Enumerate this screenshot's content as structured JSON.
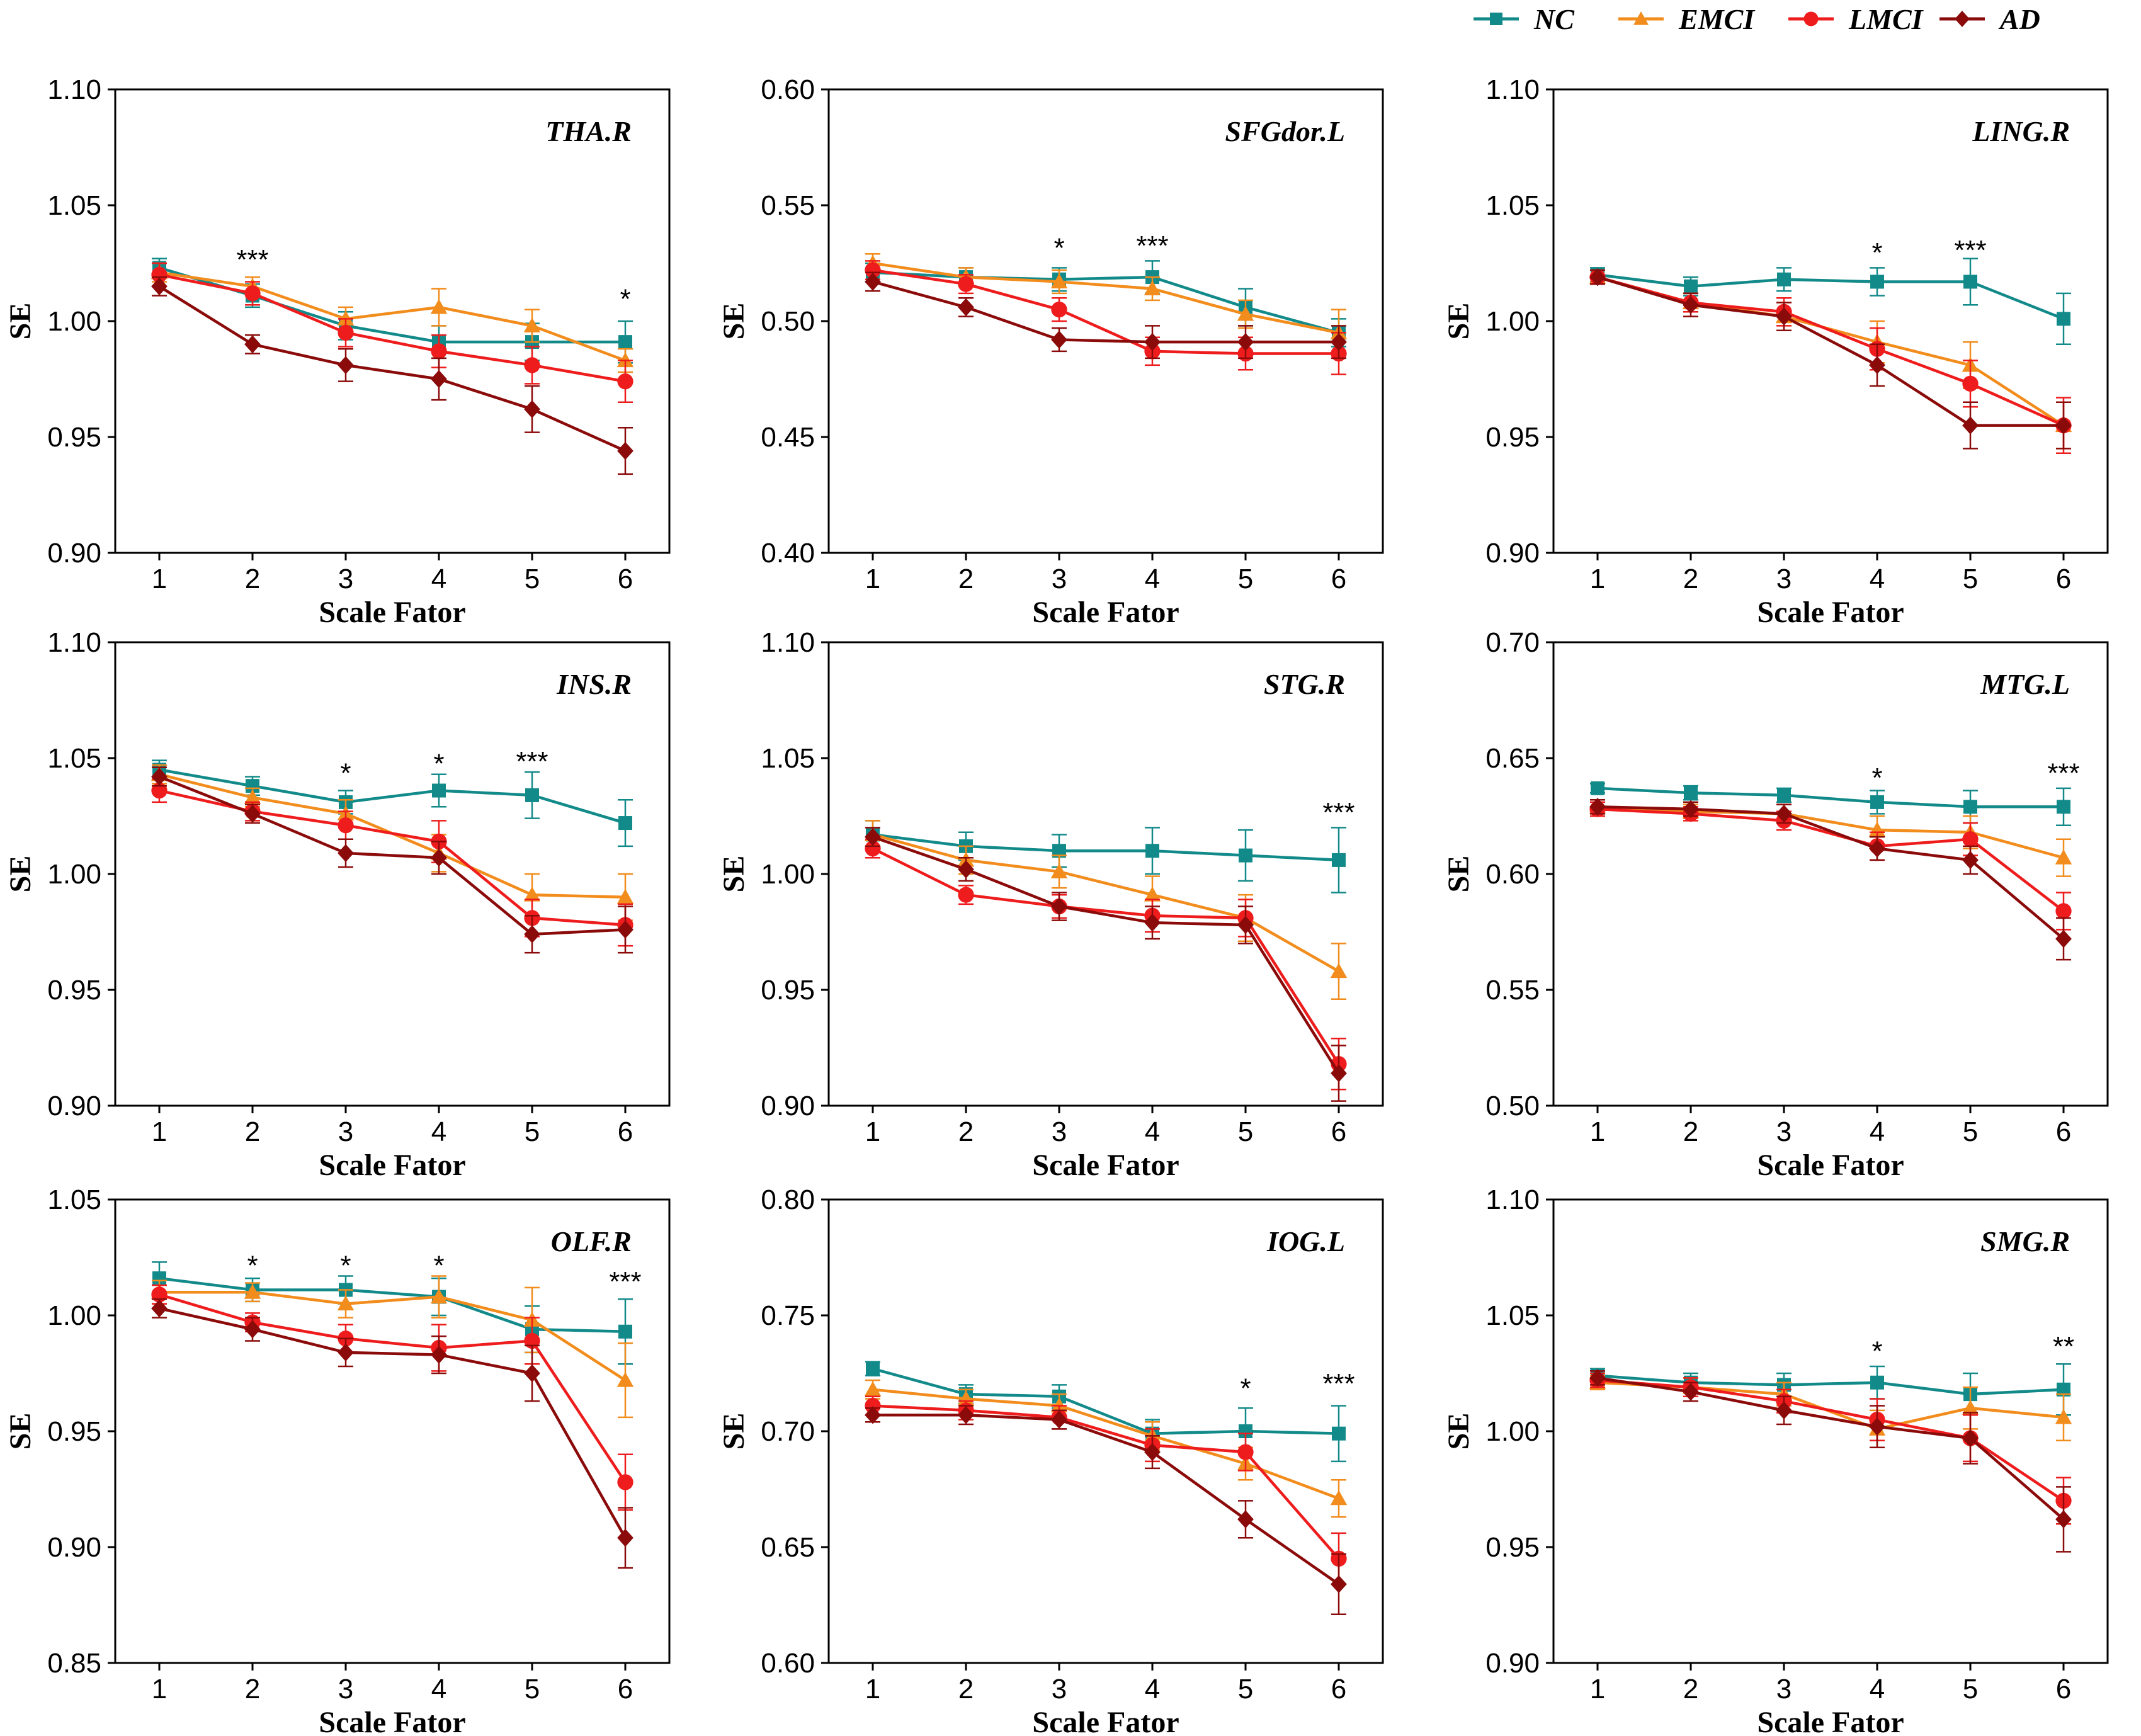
{
  "colors": {
    "NC": "#138a8a",
    "EMCI": "#f28c1c",
    "LMCI": "#ee1c1c",
    "AD": "#8b0a0a"
  },
  "legend": [
    {
      "name": "NC",
      "label": "NC",
      "marker": "square"
    },
    {
      "name": "EMCI",
      "label": "EMCI",
      "marker": "triangle"
    },
    {
      "name": "LMCI",
      "label": "LMCI",
      "marker": "circle"
    },
    {
      "name": "AD",
      "label": "AD",
      "marker": "diamond"
    }
  ],
  "chart_data": [
    {
      "type": "line",
      "title": "THA.R",
      "xlabel": "Scale Fator",
      "ylabel": "SE",
      "x": [
        1,
        2,
        3,
        4,
        5,
        6
      ],
      "ylim": [
        0.9,
        1.1
      ],
      "yticks": [
        "0.90",
        "0.95",
        "1.00",
        "1.05",
        "1.10"
      ],
      "significance": [
        {
          "x": 2,
          "label": "***",
          "y": 1.028
        },
        {
          "x": 6,
          "label": "*",
          "y": 1.011
        }
      ],
      "series": [
        {
          "name": "NC",
          "values": [
            1.023,
            1.011,
            0.998,
            0.991,
            0.991,
            0.991
          ],
          "err": [
            0.004,
            0.005,
            0.006,
            0.007,
            0.008,
            0.009
          ]
        },
        {
          "name": "EMCI",
          "values": [
            1.021,
            1.015,
            1.001,
            1.006,
            0.998,
            0.983
          ],
          "err": [
            0.004,
            0.004,
            0.005,
            0.008,
            0.007,
            0.005
          ]
        },
        {
          "name": "LMCI",
          "values": [
            1.02,
            1.012,
            0.995,
            0.987,
            0.981,
            0.974
          ],
          "err": [
            0.005,
            0.005,
            0.006,
            0.007,
            0.008,
            0.009
          ]
        },
        {
          "name": "AD",
          "values": [
            1.015,
            0.99,
            0.981,
            0.975,
            0.962,
            0.944
          ],
          "err": [
            0.004,
            0.004,
            0.007,
            0.009,
            0.01,
            0.01
          ]
        }
      ]
    },
    {
      "type": "line",
      "title": "SFGdor.L",
      "xlabel": "Scale Fator",
      "ylabel": "SE",
      "x": [
        1,
        2,
        3,
        4,
        5,
        6
      ],
      "ylim": [
        0.4,
        0.6
      ],
      "yticks": [
        "0.40",
        "0.45",
        "0.50",
        "0.55",
        "0.60"
      ],
      "significance": [
        {
          "x": 3,
          "label": "*",
          "y": 0.533
        },
        {
          "x": 4,
          "label": "***",
          "y": 0.534
        }
      ],
      "series": [
        {
          "name": "NC",
          "values": [
            0.521,
            0.519,
            0.518,
            0.519,
            0.506,
            0.495
          ],
          "err": [
            0.004,
            0.004,
            0.005,
            0.007,
            0.008,
            0.006
          ]
        },
        {
          "name": "EMCI",
          "values": [
            0.525,
            0.519,
            0.517,
            0.514,
            0.503,
            0.495
          ],
          "err": [
            0.004,
            0.004,
            0.005,
            0.005,
            0.006,
            0.01
          ]
        },
        {
          "name": "LMCI",
          "values": [
            0.522,
            0.516,
            0.505,
            0.487,
            0.486,
            0.486
          ],
          "err": [
            0.004,
            0.004,
            0.005,
            0.006,
            0.007,
            0.009
          ]
        },
        {
          "name": "AD",
          "values": [
            0.517,
            0.506,
            0.492,
            0.491,
            0.491,
            0.491
          ],
          "err": [
            0.004,
            0.004,
            0.005,
            0.007,
            0.007,
            0.007
          ]
        }
      ]
    },
    {
      "type": "line",
      "title": "LING.R",
      "xlabel": "Scale Fator",
      "ylabel": "SE",
      "x": [
        1,
        2,
        3,
        4,
        5,
        6
      ],
      "ylim": [
        0.9,
        1.1
      ],
      "yticks": [
        "0.90",
        "0.95",
        "1.00",
        "1.05",
        "1.10"
      ],
      "significance": [
        {
          "x": 4,
          "label": "*",
          "y": 1.031
        },
        {
          "x": 5,
          "label": "***",
          "y": 1.032
        }
      ],
      "series": [
        {
          "name": "NC",
          "values": [
            1.02,
            1.015,
            1.018,
            1.017,
            1.017,
            1.001
          ],
          "err": [
            0.003,
            0.004,
            0.005,
            0.006,
            0.01,
            0.011
          ]
        },
        {
          "name": "EMCI",
          "values": [
            1.019,
            1.008,
            1.002,
            0.991,
            0.981,
            0.955
          ],
          "err": [
            0.003,
            0.004,
            0.006,
            0.009,
            0.01,
            0.01
          ]
        },
        {
          "name": "LMCI",
          "values": [
            1.019,
            1.008,
            1.004,
            0.988,
            0.973,
            0.955
          ],
          "err": [
            0.003,
            0.004,
            0.006,
            0.009,
            0.01,
            0.012
          ]
        },
        {
          "name": "AD",
          "values": [
            1.019,
            1.007,
            1.002,
            0.981,
            0.955,
            0.955
          ],
          "err": [
            0.003,
            0.005,
            0.006,
            0.009,
            0.01,
            0.01
          ]
        }
      ]
    },
    {
      "type": "line",
      "title": "INS.R",
      "xlabel": "Scale Fator",
      "ylabel": "SE",
      "x": [
        1,
        2,
        3,
        4,
        5,
        6
      ],
      "ylim": [
        0.9,
        1.1
      ],
      "yticks": [
        "0.90",
        "0.95",
        "1.00",
        "1.05",
        "1.10"
      ],
      "significance": [
        {
          "x": 3,
          "label": "*",
          "y": 1.045
        },
        {
          "x": 4,
          "label": "*",
          "y": 1.049
        },
        {
          "x": 5,
          "label": "***",
          "y": 1.05
        }
      ],
      "series": [
        {
          "name": "NC",
          "values": [
            1.045,
            1.038,
            1.031,
            1.036,
            1.034,
            1.022
          ],
          "err": [
            0.004,
            0.004,
            0.005,
            0.007,
            0.01,
            0.01
          ]
        },
        {
          "name": "EMCI",
          "values": [
            1.043,
            1.033,
            1.026,
            1.009,
            0.991,
            0.99
          ],
          "err": [
            0.004,
            0.004,
            0.006,
            0.008,
            0.009,
            0.01
          ]
        },
        {
          "name": "LMCI",
          "values": [
            1.036,
            1.027,
            1.021,
            1.014,
            0.981,
            0.978
          ],
          "err": [
            0.005,
            0.004,
            0.006,
            0.009,
            0.008,
            0.009
          ]
        },
        {
          "name": "AD",
          "values": [
            1.042,
            1.026,
            1.009,
            1.007,
            0.974,
            0.976
          ],
          "err": [
            0.004,
            0.004,
            0.006,
            0.007,
            0.008,
            0.01
          ]
        }
      ]
    },
    {
      "type": "line",
      "title": "STG.R",
      "xlabel": "Scale Fator",
      "ylabel": "SE",
      "x": [
        1,
        2,
        3,
        4,
        5,
        6
      ],
      "ylim": [
        0.9,
        1.1
      ],
      "yticks": [
        "0.90",
        "0.95",
        "1.00",
        "1.05",
        "1.10"
      ],
      "significance": [
        {
          "x": 6,
          "label": "***",
          "y": 1.028
        }
      ],
      "series": [
        {
          "name": "NC",
          "values": [
            1.017,
            1.012,
            1.01,
            1.01,
            1.008,
            1.006
          ],
          "err": [
            0.006,
            0.006,
            0.007,
            0.01,
            0.011,
            0.014
          ]
        },
        {
          "name": "EMCI",
          "values": [
            1.017,
            1.006,
            1.001,
            0.991,
            0.981,
            0.958
          ],
          "err": [
            0.006,
            0.006,
            0.007,
            0.008,
            0.01,
            0.012
          ]
        },
        {
          "name": "LMCI",
          "values": [
            1.011,
            0.991,
            0.986,
            0.982,
            0.981,
            0.918
          ],
          "err": [
            0.004,
            0.004,
            0.005,
            0.007,
            0.008,
            0.011
          ]
        },
        {
          "name": "AD",
          "values": [
            1.016,
            1.002,
            0.986,
            0.979,
            0.978,
            0.914
          ],
          "err": [
            0.004,
            0.005,
            0.006,
            0.007,
            0.008,
            0.012
          ]
        }
      ]
    },
    {
      "type": "line",
      "title": "MTG.L",
      "xlabel": "Scale Fator",
      "ylabel": "SE",
      "x": [
        1,
        2,
        3,
        4,
        5,
        6
      ],
      "ylim": [
        0.5,
        0.7
      ],
      "yticks": [
        "0.50",
        "0.55",
        "0.60",
        "0.65",
        "0.70"
      ],
      "significance": [
        {
          "x": 4,
          "label": "*",
          "y": 0.643
        },
        {
          "x": 6,
          "label": "***",
          "y": 0.645
        }
      ],
      "series": [
        {
          "name": "NC",
          "values": [
            0.637,
            0.635,
            0.634,
            0.631,
            0.629,
            0.629
          ],
          "err": [
            0.002,
            0.003,
            0.003,
            0.005,
            0.007,
            0.008
          ]
        },
        {
          "name": "EMCI",
          "values": [
            0.629,
            0.627,
            0.626,
            0.619,
            0.618,
            0.607
          ],
          "err": [
            0.003,
            0.003,
            0.004,
            0.006,
            0.007,
            0.008
          ]
        },
        {
          "name": "LMCI",
          "values": [
            0.628,
            0.626,
            0.623,
            0.612,
            0.615,
            0.584
          ],
          "err": [
            0.003,
            0.003,
            0.004,
            0.006,
            0.007,
            0.008
          ]
        },
        {
          "name": "AD",
          "values": [
            0.629,
            0.628,
            0.626,
            0.611,
            0.606,
            0.572
          ],
          "err": [
            0.003,
            0.003,
            0.004,
            0.005,
            0.006,
            0.009
          ]
        }
      ]
    },
    {
      "type": "line",
      "title": "OLF.R",
      "xlabel": "Scale Fator",
      "ylabel": "SE",
      "x": [
        1,
        2,
        3,
        4,
        5,
        6
      ],
      "ylim": [
        0.85,
        1.05
      ],
      "yticks": [
        "0.85",
        "0.90",
        "0.95",
        "1.00",
        "1.05"
      ],
      "significance": [
        {
          "x": 2,
          "label": "*",
          "y": 1.023
        },
        {
          "x": 3,
          "label": "*",
          "y": 1.023
        },
        {
          "x": 4,
          "label": "*",
          "y": 1.023
        },
        {
          "x": 6,
          "label": "***",
          "y": 1.016
        }
      ],
      "series": [
        {
          "name": "NC",
          "values": [
            1.016,
            1.011,
            1.011,
            1.008,
            0.994,
            0.993
          ],
          "err": [
            0.007,
            0.005,
            0.006,
            0.008,
            0.01,
            0.014
          ]
        },
        {
          "name": "EMCI",
          "values": [
            1.01,
            1.01,
            1.005,
            1.008,
            0.998,
            0.972
          ],
          "err": [
            0.005,
            0.004,
            0.006,
            0.009,
            0.014,
            0.016
          ]
        },
        {
          "name": "LMCI",
          "values": [
            1.009,
            0.997,
            0.99,
            0.986,
            0.989,
            0.928
          ],
          "err": [
            0.004,
            0.004,
            0.006,
            0.01,
            0.01,
            0.012
          ]
        },
        {
          "name": "AD",
          "values": [
            1.003,
            0.994,
            0.984,
            0.983,
            0.975,
            0.904
          ],
          "err": [
            0.004,
            0.005,
            0.006,
            0.008,
            0.012,
            0.013
          ]
        }
      ]
    },
    {
      "type": "line",
      "title": "IOG.L",
      "xlabel": "Scale Fator",
      "ylabel": "SE",
      "x": [
        1,
        2,
        3,
        4,
        5,
        6
      ],
      "ylim": [
        0.6,
        0.8
      ],
      "yticks": [
        "0.60",
        "0.65",
        "0.70",
        "0.75",
        "0.80"
      ],
      "significance": [
        {
          "x": 5,
          "label": "*",
          "y": 0.72
        },
        {
          "x": 6,
          "label": "***",
          "y": 0.722
        }
      ],
      "series": [
        {
          "name": "NC",
          "values": [
            0.727,
            0.716,
            0.715,
            0.699,
            0.7,
            0.699
          ],
          "err": [
            0.003,
            0.004,
            0.005,
            0.006,
            0.01,
            0.012
          ]
        },
        {
          "name": "EMCI",
          "values": [
            0.718,
            0.714,
            0.711,
            0.698,
            0.686,
            0.671
          ],
          "err": [
            0.004,
            0.004,
            0.005,
            0.006,
            0.007,
            0.008
          ]
        },
        {
          "name": "LMCI",
          "values": [
            0.711,
            0.709,
            0.706,
            0.694,
            0.691,
            0.645
          ],
          "err": [
            0.004,
            0.004,
            0.005,
            0.007,
            0.008,
            0.011
          ]
        },
        {
          "name": "AD",
          "values": [
            0.707,
            0.707,
            0.705,
            0.691,
            0.662,
            0.634
          ],
          "err": [
            0.003,
            0.004,
            0.004,
            0.007,
            0.008,
            0.013
          ]
        }
      ]
    },
    {
      "type": "line",
      "title": "SMG.R",
      "xlabel": "Scale Fator",
      "ylabel": "SE",
      "x": [
        1,
        2,
        3,
        4,
        5,
        6
      ],
      "ylim": [
        0.9,
        1.1
      ],
      "yticks": [
        "0.90",
        "0.95",
        "1.00",
        "1.05",
        "1.10"
      ],
      "significance": [
        {
          "x": 4,
          "label": "*",
          "y": 1.036
        },
        {
          "x": 6,
          "label": "**",
          "y": 1.038
        }
      ],
      "series": [
        {
          "name": "NC",
          "values": [
            1.024,
            1.021,
            1.02,
            1.021,
            1.016,
            1.018
          ],
          "err": [
            0.003,
            0.004,
            0.005,
            0.007,
            0.009,
            0.011
          ]
        },
        {
          "name": "EMCI",
          "values": [
            1.021,
            1.019,
            1.016,
            1.001,
            1.01,
            1.006
          ],
          "err": [
            0.003,
            0.004,
            0.005,
            0.008,
            0.009,
            0.01
          ]
        },
        {
          "name": "LMCI",
          "values": [
            1.022,
            1.019,
            1.013,
            1.005,
            0.997,
            0.97
          ],
          "err": [
            0.003,
            0.004,
            0.005,
            0.009,
            0.01,
            0.01
          ]
        },
        {
          "name": "AD",
          "values": [
            1.023,
            1.017,
            1.009,
            1.002,
            0.997,
            0.962
          ],
          "err": [
            0.003,
            0.004,
            0.006,
            0.009,
            0.011,
            0.014
          ]
        }
      ]
    }
  ]
}
